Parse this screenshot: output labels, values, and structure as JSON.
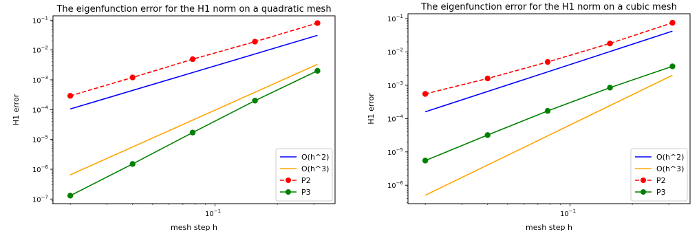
{
  "chart_data": [
    {
      "type": "line",
      "title": "The eigenfunction error for the H1 norm on a quadratic mesh",
      "xlabel": "mesh step h",
      "ylabel": "H1 error",
      "xscale": "log",
      "yscale": "log",
      "xlim": [
        0.0165,
        0.38
      ],
      "ylim": [
        7e-08,
        0.14
      ],
      "grid": false,
      "legend_position": "lower-right",
      "x_ticks": [
        {
          "value": 0.1,
          "label": "10",
          "exp": "−1"
        }
      ],
      "y_ticks": [
        {
          "value": 1e-07,
          "label": "10",
          "exp": "−7"
        },
        {
          "value": 1e-06,
          "label": "10",
          "exp": "−6"
        },
        {
          "value": 1e-05,
          "label": "10",
          "exp": "−5"
        },
        {
          "value": 0.0001,
          "label": "10",
          "exp": "−4"
        },
        {
          "value": 0.001,
          "label": "10",
          "exp": "−3"
        },
        {
          "value": 0.01,
          "label": "10",
          "exp": "−2"
        },
        {
          "value": 0.1,
          "label": "10",
          "exp": "−1"
        }
      ],
      "series": [
        {
          "name": "O(h^2)",
          "color": "#0000ff",
          "style": "solid",
          "marker": "none",
          "x": [
            0.02,
            0.3125
          ],
          "y": [
            0.000105,
            0.031
          ]
        },
        {
          "name": "O(h^3)",
          "color": "#ffa500",
          "style": "solid",
          "marker": "none",
          "x": [
            0.02,
            0.3125
          ],
          "y": [
            6.5e-07,
            0.0033
          ]
        },
        {
          "name": "P2",
          "color": "#ff0000",
          "style": "dashed",
          "marker": "circle",
          "x": [
            0.02,
            0.04,
            0.078,
            0.156,
            0.3125
          ],
          "y": [
            0.00029,
            0.0012,
            0.0049,
            0.019,
            0.08
          ]
        },
        {
          "name": "P3",
          "color": "#008000",
          "style": "solid",
          "marker": "circle",
          "x": [
            0.02,
            0.04,
            0.078,
            0.156,
            0.3125
          ],
          "y": [
            1.3e-07,
            1.5e-06,
            1.7e-05,
            0.0002,
            0.002
          ]
        }
      ]
    },
    {
      "type": "line",
      "title": "The eigenfunction error for the H1 norm on a cubic mesh",
      "xlabel": "mesh step h",
      "ylabel": "H1 error",
      "xscale": "log",
      "yscale": "log",
      "xlim": [
        0.0165,
        0.38
      ],
      "ylim": [
        2.8e-07,
        0.14
      ],
      "grid": false,
      "legend_position": "lower-right",
      "x_ticks": [
        {
          "value": 0.1,
          "label": "10",
          "exp": "−1"
        }
      ],
      "y_ticks": [
        {
          "value": 1e-06,
          "label": "10",
          "exp": "−6"
        },
        {
          "value": 1e-05,
          "label": "10",
          "exp": "−5"
        },
        {
          "value": 0.0001,
          "label": "10",
          "exp": "−4"
        },
        {
          "value": 0.001,
          "label": "10",
          "exp": "−3"
        },
        {
          "value": 0.01,
          "label": "10",
          "exp": "−2"
        },
        {
          "value": 0.1,
          "label": "10",
          "exp": "−1"
        }
      ],
      "series": [
        {
          "name": "O(h^2)",
          "color": "#0000ff",
          "style": "solid",
          "marker": "none",
          "x": [
            0.02,
            0.3125
          ],
          "y": [
            0.00016,
            0.042
          ]
        },
        {
          "name": "O(h^3)",
          "color": "#ffa500",
          "style": "solid",
          "marker": "none",
          "x": [
            0.02,
            0.3125
          ],
          "y": [
            5e-07,
            0.002
          ]
        },
        {
          "name": "P2",
          "color": "#ff0000",
          "style": "dashed",
          "marker": "circle",
          "x": [
            0.02,
            0.04,
            0.078,
            0.156,
            0.3125
          ],
          "y": [
            0.00055,
            0.0016,
            0.005,
            0.018,
            0.075
          ]
        },
        {
          "name": "P3",
          "color": "#008000",
          "style": "solid",
          "marker": "circle",
          "x": [
            0.02,
            0.04,
            0.078,
            0.156,
            0.3125
          ],
          "y": [
            5.5e-06,
            3.2e-05,
            0.00017,
            0.00085,
            0.0037
          ]
        }
      ]
    }
  ]
}
